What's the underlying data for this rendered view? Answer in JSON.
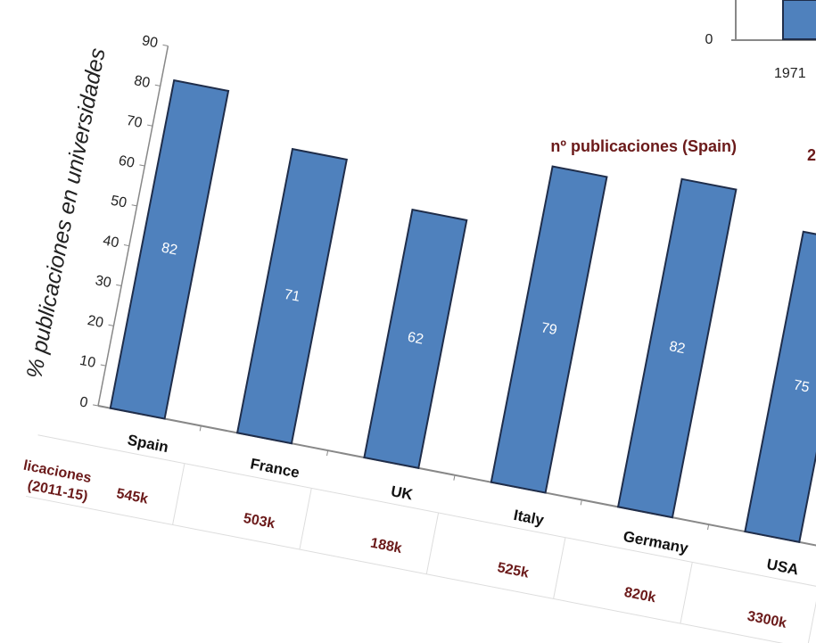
{
  "chart_data": {
    "type": "bar",
    "y_axis_label": "% publicaciones en universidades",
    "categories": [
      "Spain",
      "France",
      "UK",
      "Italy",
      "Germany",
      "USA"
    ],
    "values": [
      82,
      71,
      62,
      79,
      82,
      75
    ],
    "color": "#4f81bd",
    "ylim": [
      0,
      90
    ],
    "yticks": [
      0,
      10,
      20,
      30,
      40,
      50,
      60,
      70,
      80,
      90
    ],
    "table_row_label": [
      "licaciones",
      "(2011-15)"
    ],
    "table_row": [
      "545k",
      "503k",
      "188k",
      "525k",
      "820k",
      "3300k"
    ]
  },
  "inset": {
    "title": "nº publicaciones (Spain)",
    "ytick_label": "0",
    "xtick_label": "1971",
    "fragment": "2"
  }
}
